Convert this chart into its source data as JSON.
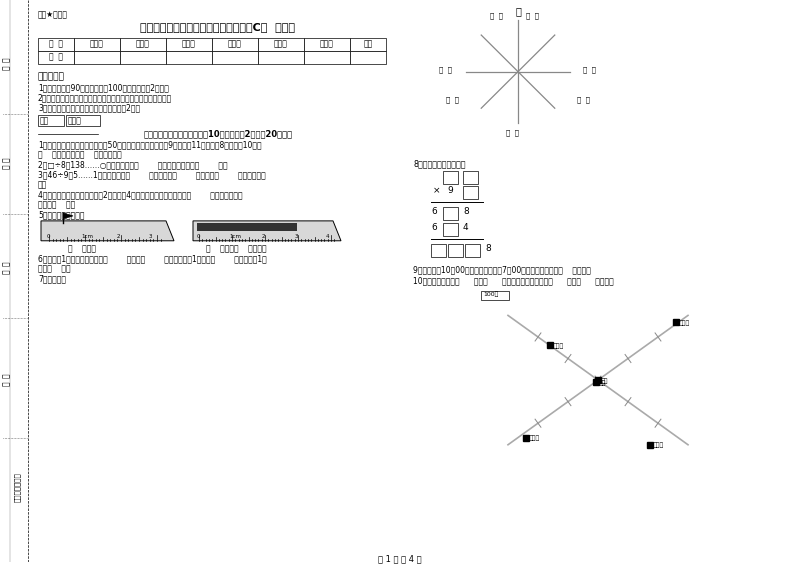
{
  "bg_color": "#ffffff",
  "title": "江西版三年级数学下学期开学检测试卷C卷  附解析",
  "stamp_text": "绝密★启用前",
  "table_headers": [
    "题  号",
    "填空题",
    "选择题",
    "判断题",
    "计算题",
    "综合题",
    "应用题",
    "总分"
  ],
  "table_row1": [
    "得  分",
    "",
    "",
    "",
    "",
    "",
    "",
    ""
  ],
  "exam_notice_title": "考试须知：",
  "exam_notices": [
    "1、考试时间：90分钟，满分为100分（含卷面分2分）。",
    "2、请首先按要求在试卷的指定位置填写您的姓名、班级、学号。",
    "3、不要在试卷上乱写乱画，卷面不整洁扣2分。"
  ],
  "section_header": "一、用心思考，正确填空（共10小题，每题2分，共20分）。",
  "q1a": "1、体育老师对第一小组同学进行50米跑测试，成绩如下小红9秒，小温11秒，小明8秒，小军10秒，",
  "q1b": "（    ）跑得最快，（    ）跑得最慢。",
  "q2": "2、□÷8＝138……○，余数最大填（        ），这时被除数是（        ）。",
  "q3a": "3、46÷9＝5……1中，被除数是（        ），除数是（        ），商是（        ），余数是（",
  "q3b": "）。",
  "q4a": "4、劳动课上做纸花，红红做了2朵纸花，4朵蓝花，红花占纸花总数的（        ），蓝花占纸花",
  "q4b": "总数的（    ）。",
  "q5": "5、量出钉子的长度。",
  "q6a": "6、分针走1小格，秒针正好走（        ），是（        ）秒，分针走1大格是（        ），时针走1大",
  "q6b": "格是（    ）。",
  "q7": "7、填一填。",
  "q8_text": "8、在里填上适当的数。",
  "q9_text": "9、小林晚上10：00睡觉，第二天早上7：00起床，他一共睡了（    ）小时。",
  "q10_text": "10、小红家在学校（      ）方（      ）米处，小明家在学校（      ）方（      ）米处。",
  "page_footer": "第 1 页 共 4 页",
  "compass_label": "北"
}
